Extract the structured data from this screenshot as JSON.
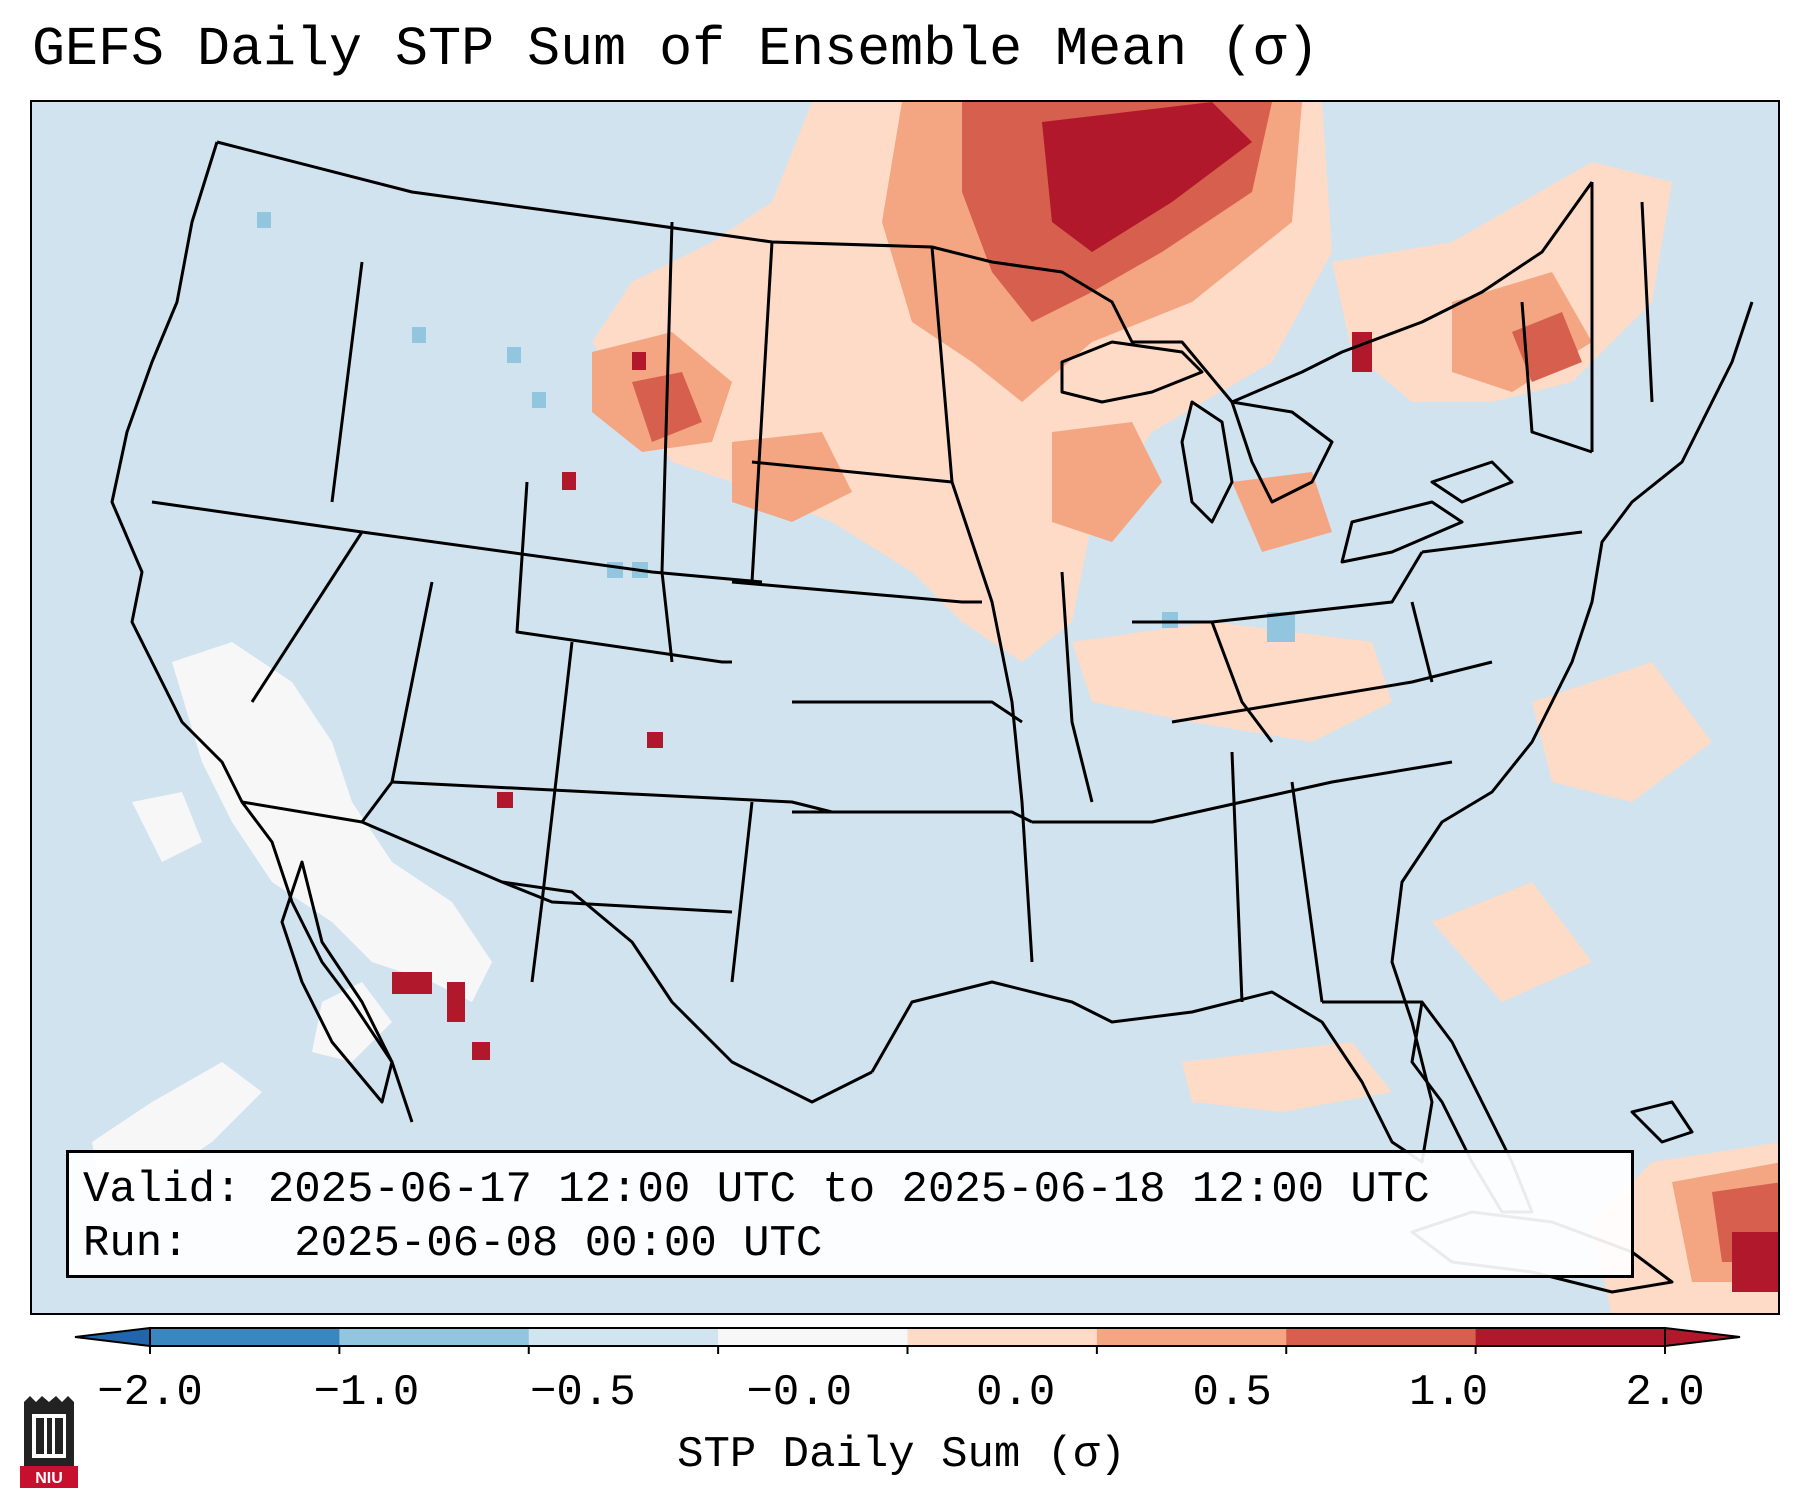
{
  "title": "GEFS Daily STP Sum of Ensemble Mean (σ)",
  "info": {
    "valid_label": "Valid:",
    "valid_value": "2025-06-17 12:00 UTC to 2025-06-18 12:00 UTC",
    "run_label": "Run:",
    "run_value": "2025-06-08 00:00 UTC"
  },
  "colorbar": {
    "label": "STP Daily Sum (σ)",
    "ticks": [
      "−2.0",
      "−1.0",
      "−0.5",
      "−0.0",
      "0.0",
      "0.5",
      "1.0",
      "2.0"
    ],
    "colors": [
      "#3a87c0",
      "#92c5de",
      "#d1e5f0",
      "#f7f7f7",
      "#fddbc7",
      "#f4a582",
      "#d6604d",
      "#b2182b"
    ],
    "under_color": "#2166ac",
    "over_color": "#b2182b"
  },
  "map": {
    "background_color": "#d0e3ef",
    "region": "Contiguous United States"
  },
  "logo": {
    "text": "NIU",
    "color": "#c8102e"
  }
}
